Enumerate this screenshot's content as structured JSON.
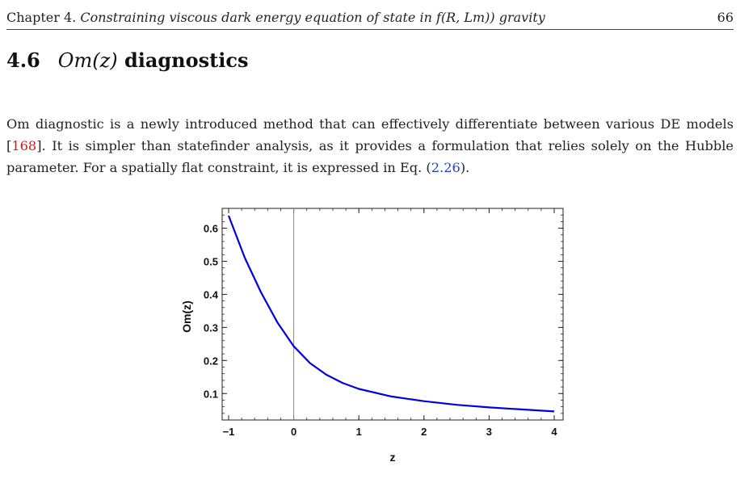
{
  "header": {
    "chapter": "Chapter 4.",
    "title": "Constraining viscous dark energy equation of state in f(R, Lm)) gravity",
    "page": "66"
  },
  "section": {
    "number": "4.6",
    "math": "Om(z)",
    "title": "diagnostics"
  },
  "paragraph": {
    "t1": "Om diagnostic is a newly introduced method that can effectively differentiate between various DE models [",
    "ref": "168",
    "t2": "]. It is simpler than statefinder analysis, as it provides a formulation that relies solely on the Hubble parameter. For a spatially flat constraint, it is expressed in Eq. (",
    "eq": "2.26",
    "t3": ")."
  },
  "chart_data": {
    "type": "line",
    "xlabel": "z",
    "ylabel": "Om(z)",
    "xlim": [
      -1,
      4
    ],
    "ylim": [
      0.02,
      0.66
    ],
    "xticks": [
      "-1",
      "0",
      "1",
      "2",
      "3",
      "4"
    ],
    "yticks": [
      "0.1",
      "0.2",
      "0.3",
      "0.4",
      "0.5",
      "0.6"
    ],
    "vertical_line_at": 0,
    "series": [
      {
        "color": "#0000e0",
        "x": [
          -1,
          -0.75,
          -0.5,
          -0.25,
          0,
          0.25,
          0.5,
          0.75,
          1,
          1.5,
          2,
          2.5,
          3,
          3.5,
          4
        ],
        "y": [
          0.638,
          0.51,
          0.405,
          0.315,
          0.243,
          0.192,
          0.157,
          0.132,
          0.114,
          0.091,
          0.077,
          0.066,
          0.058,
          0.052,
          0.046
        ]
      }
    ]
  }
}
